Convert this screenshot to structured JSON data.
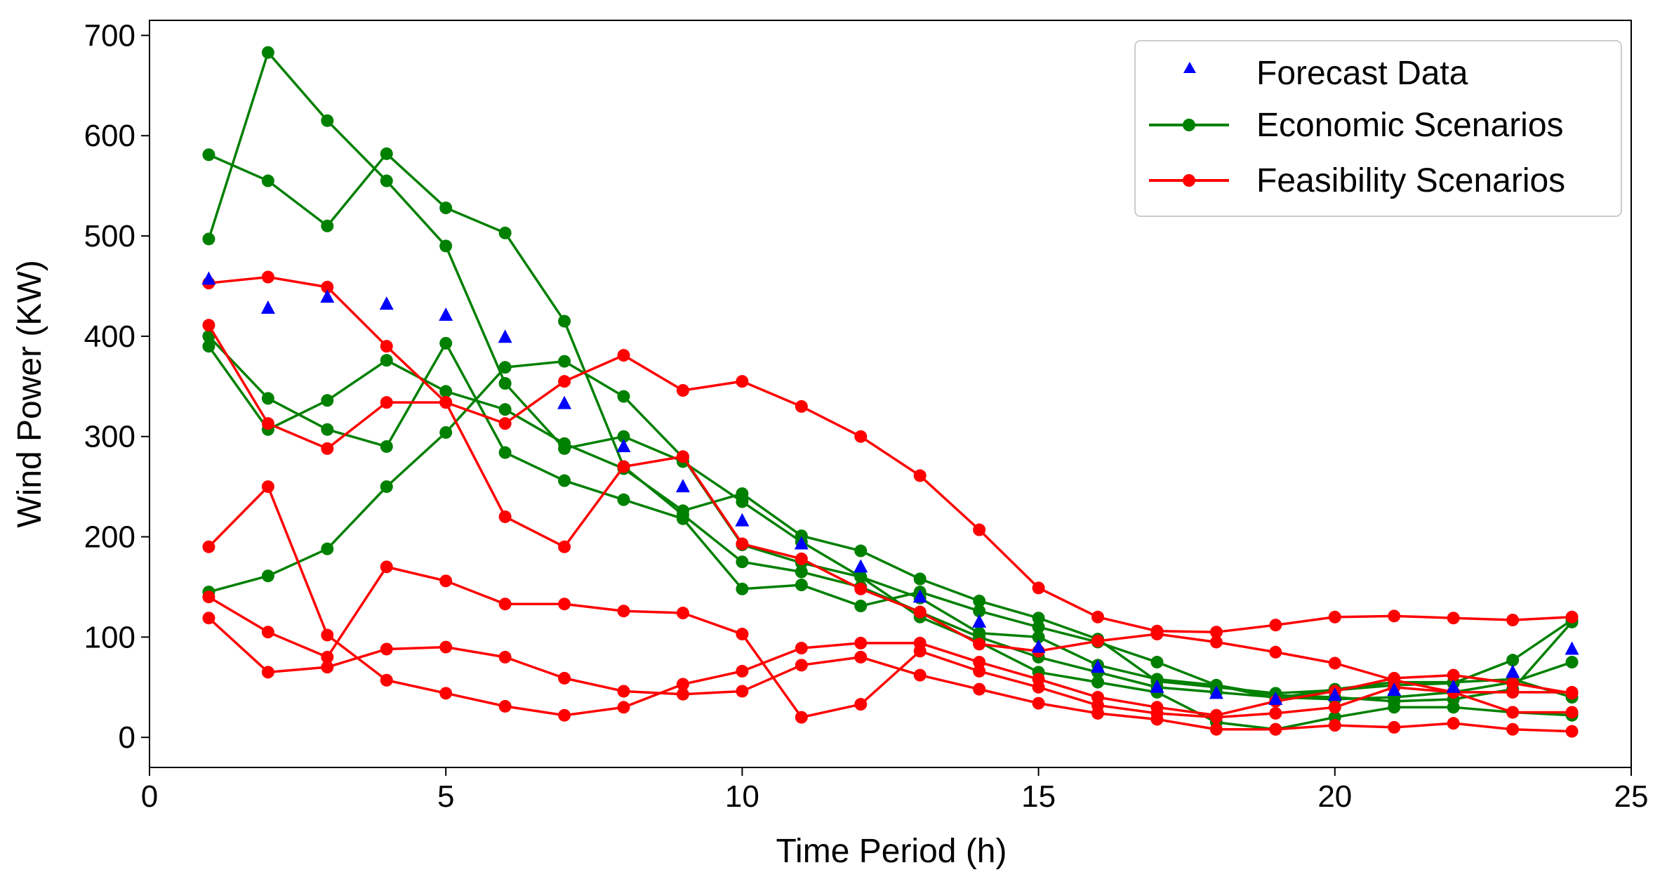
{
  "chart_data": {
    "type": "line",
    "xlabel": "Time Period (h)",
    "ylabel": "Wind Power (KW)",
    "xlim": [
      0,
      25
    ],
    "ylim": [
      -30,
      715
    ],
    "xticks": [
      0,
      5,
      10,
      15,
      20,
      25
    ],
    "yticks": [
      0,
      100,
      200,
      300,
      400,
      500,
      600,
      700
    ],
    "grid": false,
    "legend_position": "top-right",
    "legend": [
      "Forecast Data",
      "Economic Scenarios",
      "Feasibility Scenarios"
    ],
    "x": [
      1,
      2,
      3,
      4,
      5,
      6,
      7,
      8,
      9,
      10,
      11,
      12,
      13,
      14,
      15,
      16,
      17,
      18,
      19,
      20,
      21,
      22,
      23,
      24
    ],
    "forecast": {
      "name": "Forecast Data",
      "color": "#0000ff",
      "marker": "triangle",
      "values": [
        457,
        428,
        439,
        432,
        421,
        399,
        333,
        290,
        250,
        216,
        193,
        170,
        140,
        115,
        90,
        70,
        50,
        44,
        38,
        42,
        47,
        50,
        65,
        88
      ]
    },
    "economic": {
      "name": "Economic Scenarios",
      "color": "#008000",
      "series": [
        [
          581,
          555,
          510,
          582,
          528,
          503,
          415,
          270,
          222,
          175,
          165,
          150,
          125,
          100,
          80,
          65,
          50,
          45,
          40,
          38,
          40,
          45,
          55,
          75
        ],
        [
          497,
          683,
          615,
          555,
          490,
          353,
          288,
          300,
          275,
          235,
          195,
          160,
          120,
          95,
          65,
          55,
          45,
          15,
          8,
          20,
          30,
          30,
          25,
          22
        ],
        [
          400,
          338,
          307,
          290,
          393,
          284,
          256,
          237,
          218,
          148,
          152,
          131,
          145,
          126,
          110,
          95,
          75,
          52,
          42,
          40,
          36,
          38,
          48,
          115
        ],
        [
          390,
          307,
          336,
          376,
          345,
          327,
          293,
          268,
          226,
          243,
          201,
          186,
          158,
          136,
          119,
          98,
          56,
          50,
          44,
          47,
          52,
          54,
          77,
          117
        ],
        [
          145,
          161,
          188,
          250,
          304,
          369,
          375,
          340,
          279,
          192,
          174,
          160,
          139,
          104,
          100,
          72,
          58,
          52,
          39,
          48,
          55,
          55,
          58,
          40
        ]
      ]
    },
    "feasibility": {
      "name": "Feasibility Scenarios",
      "color": "#ff0000",
      "series": [
        [
          453,
          459,
          449,
          390,
          334,
          313,
          355,
          381,
          346,
          355,
          330,
          300,
          261,
          207,
          149,
          120,
          106,
          105,
          112,
          120,
          121,
          119,
          117,
          120
        ],
        [
          411,
          313,
          288,
          334,
          334,
          220,
          190,
          270,
          280,
          193,
          178,
          148,
          125,
          93,
          86,
          96,
          103,
          95,
          85,
          74,
          57,
          45,
          45,
          45
        ],
        [
          190,
          250,
          102,
          57,
          44,
          31,
          22,
          30,
          53,
          66,
          89,
          94,
          94,
          75,
          58,
          40,
          30,
          22,
          36,
          46,
          59,
          62,
          54,
          44
        ],
        [
          140,
          105,
          80,
          170,
          156,
          133,
          133,
          126,
          124,
          103,
          20,
          33,
          86,
          66,
          50,
          32,
          24,
          20,
          24,
          30,
          50,
          45,
          25,
          25
        ],
        [
          119,
          65,
          70,
          88,
          90,
          80,
          59,
          46,
          43,
          46,
          72,
          80,
          62,
          48,
          34,
          24,
          18,
          8,
          8,
          12,
          10,
          14,
          8,
          6
        ]
      ]
    }
  }
}
